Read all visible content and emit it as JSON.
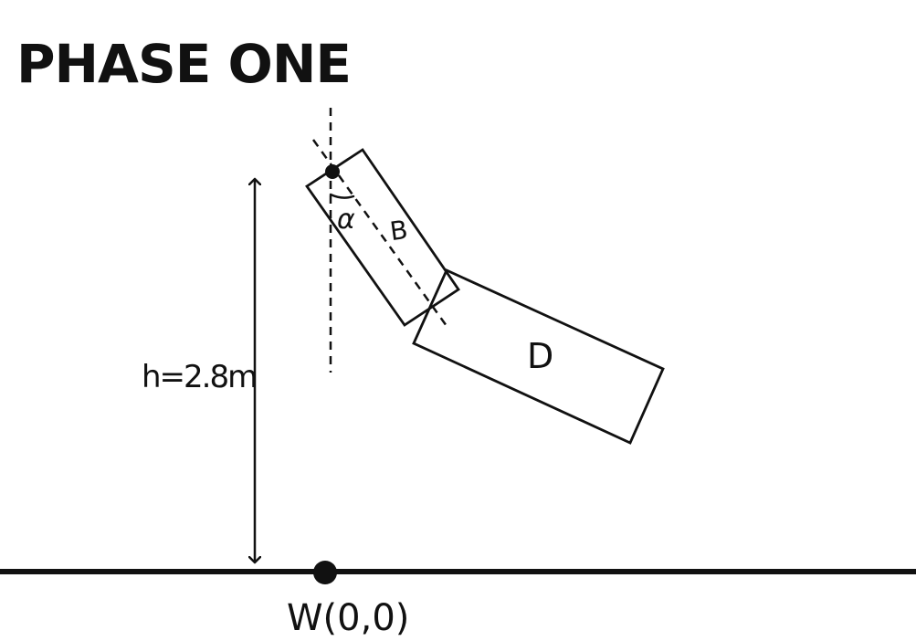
{
  "title": "PHASE ONE",
  "labels": {
    "segment_upper": "B",
    "segment_lower": "D",
    "angle": "α",
    "height": "h=2.8m",
    "origin": "W(0,0)"
  },
  "colors": {
    "ink": "#111111",
    "background": "#ffffff"
  }
}
